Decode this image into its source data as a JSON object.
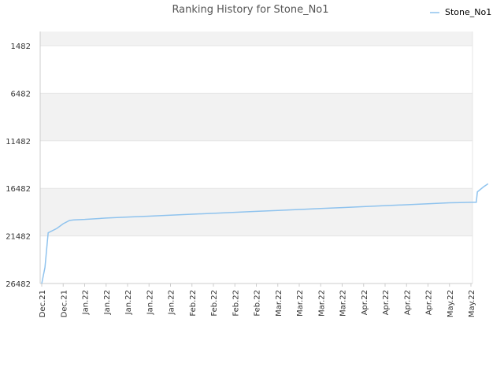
{
  "chart_data": {
    "type": "line",
    "title": "Ranking History for Stone_No1",
    "xlabel": "",
    "ylabel": "",
    "y_inverted": true,
    "ylim": [
      26482,
      1482
    ],
    "y_ticks": [
      1482,
      6482,
      11482,
      16482,
      21482,
      26482
    ],
    "x_tick_labels": [
      "Dec.21",
      "Dec.21",
      "Jan.22",
      "Jan.22",
      "Jan.22",
      "Jan.22",
      "Jan.22",
      "Feb.22",
      "Feb.22",
      "Feb.22",
      "Feb.22",
      "Mar.22",
      "Mar.22",
      "Mar.22",
      "Mar.22",
      "Apr.22",
      "Apr.22",
      "Apr.22",
      "Apr.22",
      "May.22",
      "May.22"
    ],
    "grid": true,
    "legend_position": "top-right",
    "line_color": "#8fc3ee",
    "series": [
      {
        "name": "Stone_No1",
        "points": [
          [
            0.0,
            26482
          ],
          [
            0.15,
            24800
          ],
          [
            0.3,
            21150
          ],
          [
            0.7,
            20700
          ],
          [
            1.0,
            20200
          ],
          [
            1.3,
            19850
          ],
          [
            1.5,
            19800
          ],
          [
            2.0,
            19750
          ],
          [
            3.0,
            19600
          ],
          [
            4.0,
            19500
          ],
          [
            5.0,
            19400
          ],
          [
            6.0,
            19300
          ],
          [
            7.0,
            19200
          ],
          [
            8.0,
            19100
          ],
          [
            9.0,
            19000
          ],
          [
            10.0,
            18900
          ],
          [
            11.0,
            18800
          ],
          [
            12.0,
            18700
          ],
          [
            13.0,
            18600
          ],
          [
            14.0,
            18500
          ],
          [
            15.0,
            18400
          ],
          [
            16.0,
            18300
          ],
          [
            17.0,
            18200
          ],
          [
            18.0,
            18100
          ],
          [
            19.0,
            18000
          ],
          [
            19.5,
            17980
          ],
          [
            20.0,
            17950
          ],
          [
            20.25,
            17950
          ],
          [
            20.3,
            16850
          ],
          [
            20.6,
            16300
          ],
          [
            20.8,
            16000
          ]
        ]
      }
    ]
  },
  "colors": {
    "band": "#f2f2f2",
    "grid": "#e4e4e4",
    "axis": "#cccccc"
  }
}
